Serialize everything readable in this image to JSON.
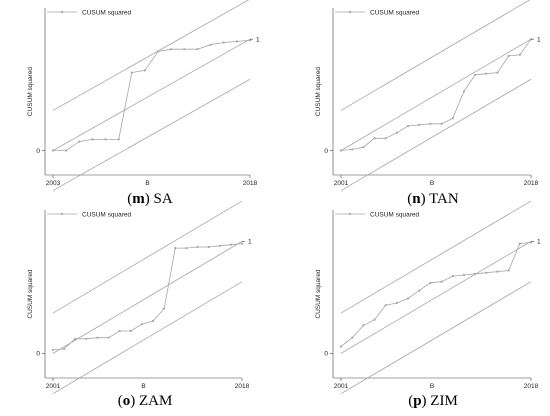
{
  "chart_data": [
    {
      "type": "line",
      "panel_letter": "m",
      "panel_name": "SA",
      "legend": "CUSUM squared",
      "legend_placement": "top-left",
      "ylabel": "CUSUM squared",
      "xlabel": "B",
      "x_ticks": [
        "2003",
        "2018"
      ],
      "y_ticks": [
        "0",
        "1"
      ],
      "xlim": [
        2003,
        2018
      ],
      "ylim": [
        -0.22,
        1.28
      ],
      "band": 0.36,
      "series": [
        {
          "x": [
            2003,
            2004,
            2005,
            2006,
            2007,
            2008,
            2009,
            2010,
            2011,
            2012,
            2013,
            2014,
            2015,
            2016,
            2017,
            2018
          ],
          "values": [
            0,
            0,
            0.08,
            0.1,
            0.1,
            0.1,
            0.7,
            0.72,
            0.89,
            0.91,
            0.91,
            0.91,
            0.95,
            0.97,
            0.98,
            0.99
          ]
        }
      ]
    },
    {
      "type": "line",
      "panel_letter": "n",
      "panel_name": "TAN",
      "legend": "CUSUM squared",
      "legend_placement": "top-left",
      "ylabel": "CUSUM squared",
      "xlabel": "B",
      "x_ticks": [
        "2001",
        "2018"
      ],
      "y_ticks": [
        "0",
        "1"
      ],
      "xlim": [
        2001,
        2018
      ],
      "ylim": [
        -0.22,
        1.28
      ],
      "band": 0.36,
      "series": [
        {
          "x": [
            2001,
            2002,
            2003,
            2004,
            2005,
            2006,
            2007,
            2008,
            2009,
            2010,
            2011,
            2012,
            2013,
            2014,
            2015,
            2016,
            2017,
            2018
          ],
          "values": [
            0,
            0.01,
            0.03,
            0.11,
            0.11,
            0.16,
            0.22,
            0.23,
            0.24,
            0.24,
            0.29,
            0.53,
            0.68,
            0.69,
            0.7,
            0.85,
            0.86,
            1.0
          ]
        }
      ]
    },
    {
      "type": "line",
      "panel_letter": "o",
      "panel_name": "ZAM",
      "legend": "CUSUM squared",
      "legend_placement": "top-left",
      "ylabel": "CUSUM squared",
      "xlabel": "B",
      "x_ticks": [
        "2001",
        "2018"
      ],
      "y_ticks": [
        "0",
        "1"
      ],
      "xlim": [
        2001,
        2018
      ],
      "ylim": [
        -0.22,
        1.28
      ],
      "band": 0.36,
      "series": [
        {
          "x": [
            2001,
            2002,
            2003,
            2004,
            2005,
            2006,
            2007,
            2008,
            2009,
            2010,
            2011,
            2012,
            2013,
            2014,
            2015,
            2016,
            2017,
            2018
          ],
          "values": [
            0.03,
            0.04,
            0.13,
            0.13,
            0.14,
            0.14,
            0.2,
            0.2,
            0.26,
            0.29,
            0.4,
            0.94,
            0.94,
            0.95,
            0.95,
            0.96,
            0.97,
            0.98
          ]
        }
      ]
    },
    {
      "type": "line",
      "panel_letter": "p",
      "panel_name": "ZIM",
      "legend": "CUSUM squared",
      "legend_placement": "top-left",
      "ylabel": "CUSUM squared",
      "xlabel": "B",
      "x_ticks": [
        "2001",
        "2018"
      ],
      "y_ticks": [
        "0",
        "1"
      ],
      "xlim": [
        2001,
        2018
      ],
      "ylim": [
        -0.22,
        1.28
      ],
      "band": 0.36,
      "series": [
        {
          "x": [
            2001,
            2002,
            2003,
            2004,
            2005,
            2006,
            2007,
            2008,
            2009,
            2010,
            2011,
            2012,
            2013,
            2014,
            2015,
            2016,
            2017,
            2018
          ],
          "values": [
            0.06,
            0.14,
            0.25,
            0.3,
            0.43,
            0.45,
            0.49,
            0.56,
            0.63,
            0.64,
            0.69,
            0.7,
            0.71,
            0.72,
            0.73,
            0.74,
            0.98,
            0.99
          ]
        }
      ]
    }
  ]
}
